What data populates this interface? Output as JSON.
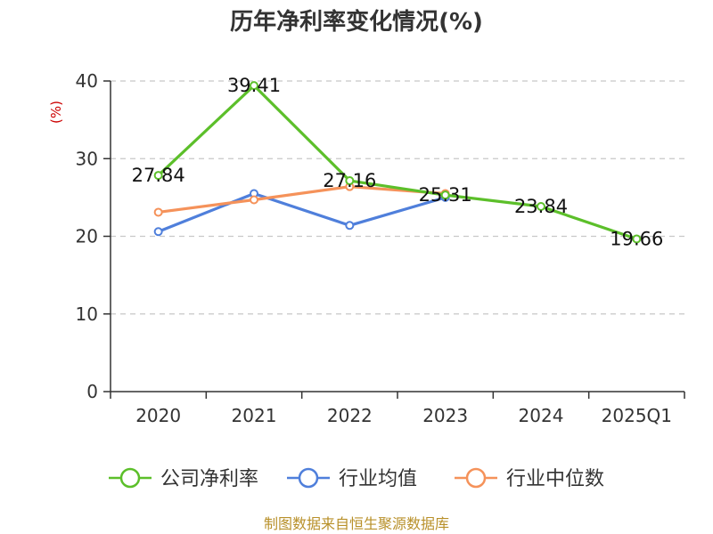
{
  "chart_data": {
    "type": "line",
    "title": "历年净利率变化情况(%)",
    "unit_label": "(%)",
    "categories": [
      "2020",
      "2021",
      "2022",
      "2023",
      "2024",
      "2025Q1"
    ],
    "ylim": [
      0,
      40
    ],
    "yticks": [
      0,
      10,
      20,
      30,
      40
    ],
    "grid": true,
    "legend_position": "bottom",
    "series": [
      {
        "name": "公司净利率",
        "color": "#5cbf2a",
        "values": [
          27.84,
          39.41,
          27.16,
          25.31,
          23.84,
          19.66
        ],
        "labels": [
          "27.84",
          "39.41",
          "27.16",
          "25.31",
          "23.84",
          "19.66"
        ]
      },
      {
        "name": "行业均值",
        "color": "#4f7fdb",
        "values": [
          20.6,
          25.5,
          21.4,
          25.0,
          null,
          null
        ]
      },
      {
        "name": "行业中位数",
        "color": "#f5925a",
        "values": [
          23.1,
          24.7,
          26.4,
          25.5,
          null,
          null
        ]
      }
    ]
  },
  "footer": {
    "source": "制图数据来自恒生聚源数据库"
  }
}
